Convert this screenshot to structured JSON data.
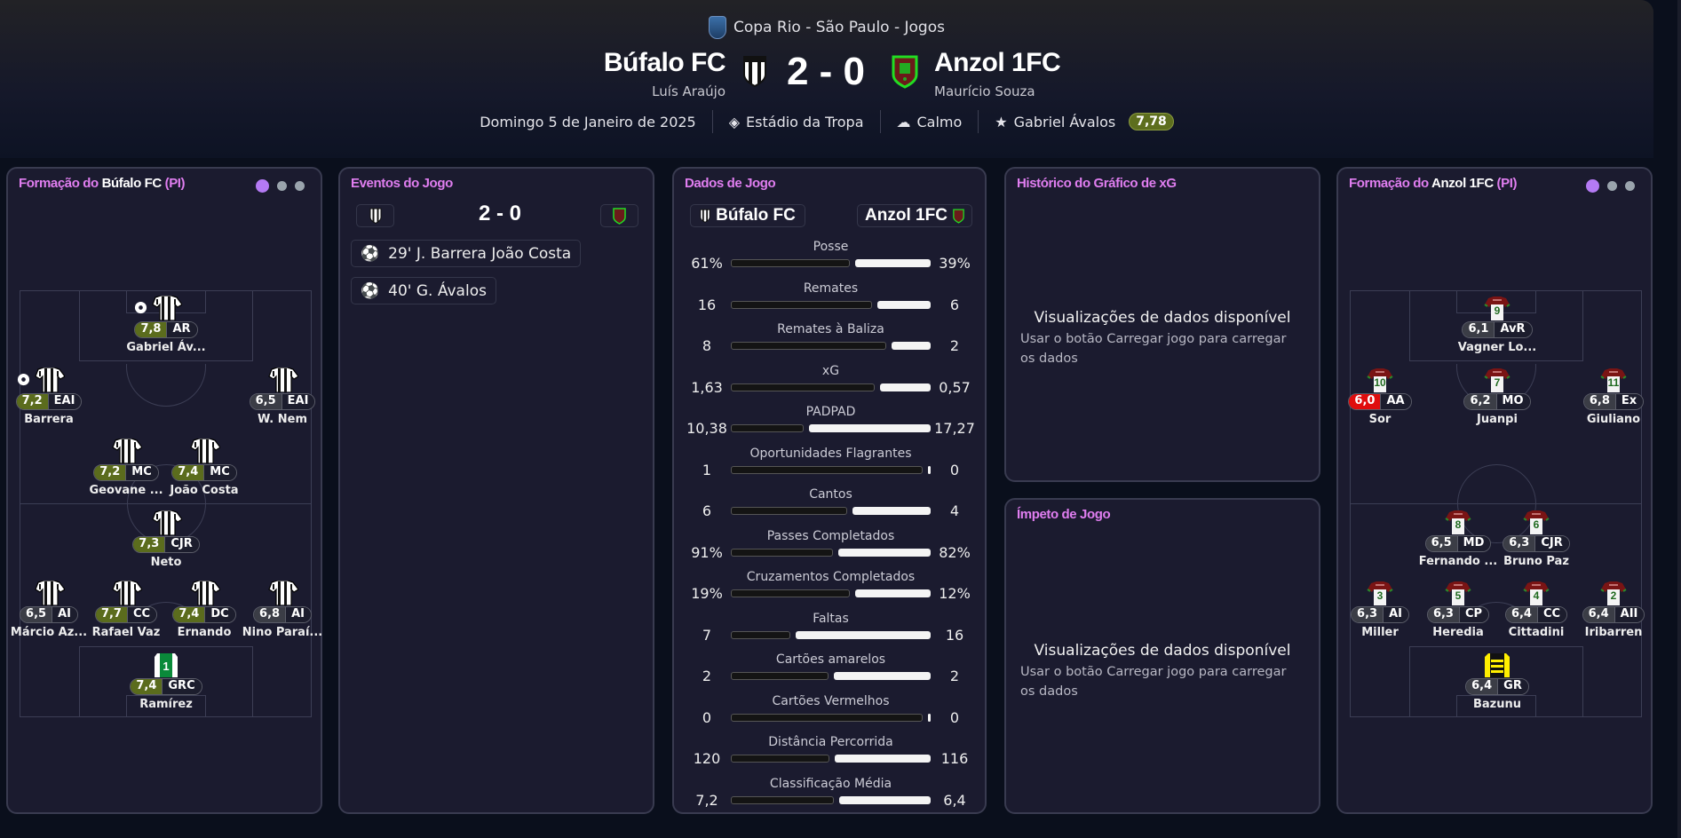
{
  "header": {
    "competition": "Copa Rio - São Paulo - Jogos",
    "home": {
      "name": "Búfalo FC",
      "manager": "Luís Araújo"
    },
    "away": {
      "name": "Anzol 1FC",
      "manager": "Maurício Souza"
    },
    "score": "2 - 0",
    "date": "Domingo 5 de Janeiro de 2025",
    "stadium": "Estádio da Tropa",
    "weather": "Calmo",
    "motm": "Gabriel Ávalos",
    "motm_rating": "7,78",
    "icons": {
      "stadium": "location-pin-icon",
      "weather": "cloud-rain-icon",
      "motm": "star-icon"
    }
  },
  "colors": {
    "accent": "#e07ef0",
    "good_rating": "#5b6c1d",
    "low_rating": "#e00d0d",
    "panel": "#1b1b2f",
    "active_dot": "#b47af4"
  },
  "home_lineup": {
    "title_prefix": "Formação do",
    "team": "Búfalo FC",
    "suffix": "(PI)",
    "players": [
      {
        "name": "Gabriel Áv...",
        "rating": "7,8",
        "pos": "AR",
        "goal": true
      },
      {
        "name": "Barrera",
        "rating": "7,2",
        "pos": "EAI",
        "goal": true
      },
      {
        "name": "W. Nem",
        "rating": "6,5",
        "pos": "EAI"
      },
      {
        "name": "Geovane ...",
        "rating": "7,2",
        "pos": "MC"
      },
      {
        "name": "João Costa",
        "rating": "7,4",
        "pos": "MC"
      },
      {
        "name": "Neto",
        "rating": "7,3",
        "pos": "CJR"
      },
      {
        "name": "Márcio Az...",
        "rating": "6,5",
        "pos": "AI"
      },
      {
        "name": "Rafael Vaz",
        "rating": "7,7",
        "pos": "CC"
      },
      {
        "name": "Ernando",
        "rating": "7,4",
        "pos": "DC"
      },
      {
        "name": "Nino Paraí...",
        "rating": "6,8",
        "pos": "AI"
      },
      {
        "name": "Ramírez",
        "rating": "7,4",
        "pos": "GRC",
        "number": "1",
        "gk": true
      }
    ]
  },
  "away_lineup": {
    "title_prefix": "Formação do",
    "team": "Anzol 1FC",
    "suffix": "(PI)",
    "players": [
      {
        "name": "Vagner Lo...",
        "rating": "6,1",
        "pos": "AvR",
        "number": "9"
      },
      {
        "name": "Sor",
        "rating": "6,0",
        "pos": "AA",
        "number": "10"
      },
      {
        "name": "Juanpi",
        "rating": "6,2",
        "pos": "MO",
        "number": "7"
      },
      {
        "name": "Giuliano",
        "rating": "6,8",
        "pos": "Ex",
        "number": "11"
      },
      {
        "name": "Fernando ...",
        "rating": "6,5",
        "pos": "MD",
        "number": "8"
      },
      {
        "name": "Bruno Paz",
        "rating": "6,3",
        "pos": "CJR",
        "number": "6"
      },
      {
        "name": "Miller",
        "rating": "6,3",
        "pos": "AI",
        "number": "3"
      },
      {
        "name": "Heredia",
        "rating": "6,3",
        "pos": "CP",
        "number": "5"
      },
      {
        "name": "Cittadini",
        "rating": "6,4",
        "pos": "CC",
        "number": "4"
      },
      {
        "name": "Iribarren",
        "rating": "6,4",
        "pos": "AII",
        "number": "2"
      },
      {
        "name": "Bazunu",
        "rating": "6,4",
        "pos": "GR",
        "gk": true
      }
    ]
  },
  "events": {
    "title": "Eventos do Jogo",
    "score": "2 - 0",
    "items": [
      {
        "text": "29' J. Barrera João Costa",
        "icon": "goal-ball-icon"
      },
      {
        "text": "40' G. Ávalos",
        "icon": "goal-ball-icon"
      }
    ]
  },
  "stats": {
    "title": "Dados de Jogo",
    "home": "Búfalo FC",
    "away": "Anzol 1FC",
    "rows": [
      {
        "label": "Posse",
        "home": "61%",
        "away": "39%"
      },
      {
        "label": "Remates",
        "home": "16",
        "away": "6"
      },
      {
        "label": "Remates à Baliza",
        "home": "8",
        "away": "2"
      },
      {
        "label": "xG",
        "home": "1,63",
        "away": "0,57"
      },
      {
        "label": "PADPAD",
        "home": "10,38",
        "away": "17,27"
      },
      {
        "label": "Oportunidades Flagrantes",
        "home": "1",
        "away": "0"
      },
      {
        "label": "Cantos",
        "home": "6",
        "away": "4"
      },
      {
        "label": "Passes Completados",
        "home": "91%",
        "away": "82%"
      },
      {
        "label": "Cruzamentos Completados",
        "home": "19%",
        "away": "12%"
      },
      {
        "label": "Faltas",
        "home": "7",
        "away": "16"
      },
      {
        "label": "Cartões amarelos",
        "home": "2",
        "away": "2"
      },
      {
        "label": "Cartões Vermelhos",
        "home": "0",
        "away": "0"
      },
      {
        "label": "Distância Percorrida",
        "home": "120",
        "away": "116"
      },
      {
        "label": "Classificação Média",
        "home": "7,2",
        "away": "6,4"
      }
    ]
  },
  "xg_panel": {
    "title": "Histórico do Gráfico de xG",
    "empty_title": "Visualizações de dados disponível",
    "empty_text": "Usar o botão Carregar jogo para carregar os dados"
  },
  "momentum_panel": {
    "title": "Ímpeto de Jogo",
    "empty_title": "Visualizações de dados disponível",
    "empty_text": "Usar o botão Carregar jogo para carregar os dados"
  }
}
